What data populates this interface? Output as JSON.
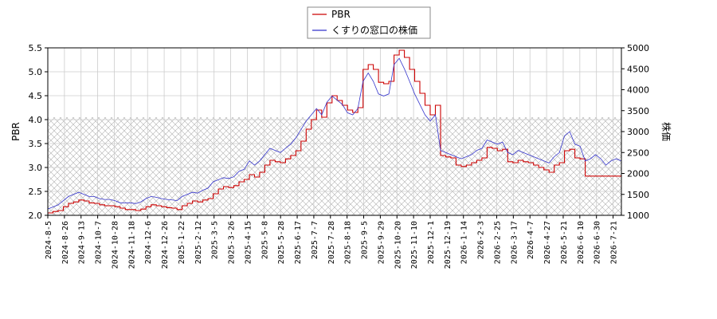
{
  "chart_data": {
    "type": "line",
    "title": "",
    "legend": {
      "placement": "top-center"
    },
    "grid": true,
    "left_axis": {
      "label": "PBR",
      "min": 2.0,
      "max": 5.5,
      "ticks": [
        "2.0",
        "2.5",
        "3.0",
        "3.5",
        "4.0",
        "4.5",
        "5.0",
        "5.5"
      ]
    },
    "right_axis": {
      "label": "株価",
      "min": 1000,
      "max": 5000,
      "ticks": [
        "1000",
        "1500",
        "2000",
        "2500",
        "3000",
        "3500",
        "4000",
        "4500",
        "5000"
      ]
    },
    "x_ticks": [
      "2024-8-5",
      "2024-8-26",
      "2024-9-13",
      "2024-10-7",
      "2024-10-28",
      "2024-11-18",
      "2024-12-6",
      "2024-12-26",
      "2025-1-22",
      "2025-2-12",
      "2025-3-5",
      "2025-3-26",
      "2025-4-15",
      "2025-5-8",
      "2025-5-28",
      "2025-6-17",
      "2025-7-7",
      "2025-7-28",
      "2025-8-18",
      "2025-9-5",
      "2025-9-29",
      "2025-10-20",
      "2025-11-10",
      "2025-12-1",
      "2025-12-19",
      "2026-1-14",
      "2026-2-3",
      "2026-2-25",
      "2026-3-17",
      "2026-4-7",
      "2026-4-27",
      "2026-5-21",
      "2026-6-10",
      "2026-6-30",
      "2026-7-21"
    ],
    "shaded_band": {
      "axis": "left",
      "from": 2.0,
      "to": 4.05
    },
    "series": [
      {
        "name": "PBR",
        "axis": "left",
        "color": "#cc0000",
        "values": [
          2.05,
          2.08,
          2.1,
          2.18,
          2.25,
          2.28,
          2.32,
          2.3,
          2.26,
          2.25,
          2.22,
          2.2,
          2.2,
          2.18,
          2.15,
          2.12,
          2.12,
          2.1,
          2.13,
          2.18,
          2.22,
          2.2,
          2.18,
          2.16,
          2.15,
          2.12,
          2.2,
          2.25,
          2.3,
          2.28,
          2.32,
          2.35,
          2.45,
          2.55,
          2.6,
          2.58,
          2.62,
          2.7,
          2.75,
          2.85,
          2.8,
          2.9,
          3.05,
          3.15,
          3.12,
          3.1,
          3.18,
          3.25,
          3.35,
          3.55,
          3.8,
          4.0,
          4.2,
          4.05,
          4.35,
          4.5,
          4.4,
          4.3,
          4.2,
          4.15,
          4.25,
          5.05,
          5.15,
          5.05,
          4.78,
          4.75,
          4.8,
          5.35,
          5.45,
          5.3,
          5.05,
          4.8,
          4.55,
          4.3,
          4.1,
          4.3,
          3.25,
          3.22,
          3.2,
          3.05,
          3.02,
          3.05,
          3.1,
          3.15,
          3.2,
          3.42,
          3.4,
          3.35,
          3.38,
          3.12,
          3.1,
          3.15,
          3.12,
          3.1,
          3.05,
          3.0,
          2.95,
          2.9,
          3.05,
          3.1,
          3.35,
          3.38,
          3.2,
          3.18,
          2.82,
          2.82,
          2.82,
          2.82,
          2.82,
          2.82,
          2.82,
          2.82
        ]
      },
      {
        "name": "くすりの窓口の株価",
        "axis": "right",
        "color": "#3333cc",
        "values": [
          1150,
          1200,
          1250,
          1350,
          1450,
          1500,
          1550,
          1500,
          1450,
          1450,
          1400,
          1380,
          1380,
          1350,
          1300,
          1300,
          1300,
          1280,
          1320,
          1400,
          1450,
          1430,
          1400,
          1380,
          1370,
          1350,
          1450,
          1500,
          1550,
          1530,
          1600,
          1650,
          1800,
          1850,
          1900,
          1880,
          1920,
          2050,
          2100,
          2300,
          2200,
          2300,
          2450,
          2600,
          2550,
          2500,
          2600,
          2700,
          2850,
          3050,
          3250,
          3400,
          3550,
          3400,
          3700,
          3850,
          3750,
          3650,
          3450,
          3400,
          3550,
          4200,
          4400,
          4200,
          3900,
          3850,
          3900,
          4600,
          4750,
          4500,
          4200,
          3900,
          3650,
          3400,
          3250,
          3400,
          2550,
          2500,
          2450,
          2400,
          2350,
          2400,
          2450,
          2550,
          2600,
          2800,
          2750,
          2700,
          2750,
          2500,
          2450,
          2550,
          2500,
          2450,
          2400,
          2350,
          2300,
          2250,
          2400,
          2500,
          2900,
          3000,
          2700,
          2650,
          2300,
          2350,
          2450,
          2350,
          2200,
          2300,
          2350,
          2300
        ]
      }
    ]
  }
}
